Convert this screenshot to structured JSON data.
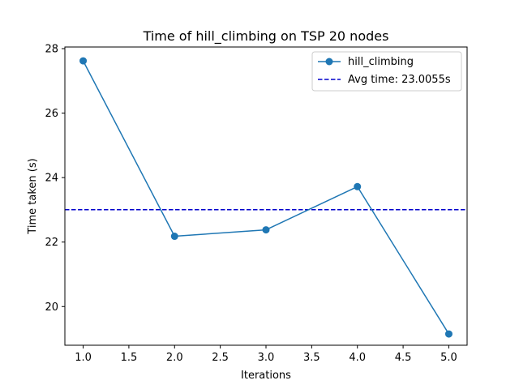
{
  "chart_data": {
    "type": "line",
    "title": "Time of hill_climbing on TSP 20 nodes",
    "xlabel": "Iterations",
    "ylabel": "Time taken (s)",
    "xlim": [
      0.8,
      5.2
    ],
    "ylim": [
      18.8,
      28.05
    ],
    "xticks": [
      1.0,
      1.5,
      2.0,
      2.5,
      3.0,
      3.5,
      4.0,
      4.5,
      5.0
    ],
    "xtick_labels": [
      "1.0",
      "1.5",
      "2.0",
      "2.5",
      "3.0",
      "3.5",
      "4.0",
      "4.5",
      "5.0"
    ],
    "yticks": [
      20,
      22,
      24,
      26,
      28
    ],
    "ytick_labels": [
      "20",
      "22",
      "24",
      "26",
      "28"
    ],
    "grid": false,
    "legend_position": "top-right",
    "series": [
      {
        "name": "hill_climbing",
        "color": "#1f77b4",
        "marker": "circle",
        "x": [
          1,
          2,
          3,
          4,
          5
        ],
        "y": [
          27.62,
          22.18,
          22.38,
          23.72,
          19.15
        ]
      }
    ],
    "hlines": [
      {
        "label": "Avg time: 23.0055s",
        "y": 23.0055,
        "color": "#0000cc",
        "style": "dashed"
      }
    ]
  }
}
